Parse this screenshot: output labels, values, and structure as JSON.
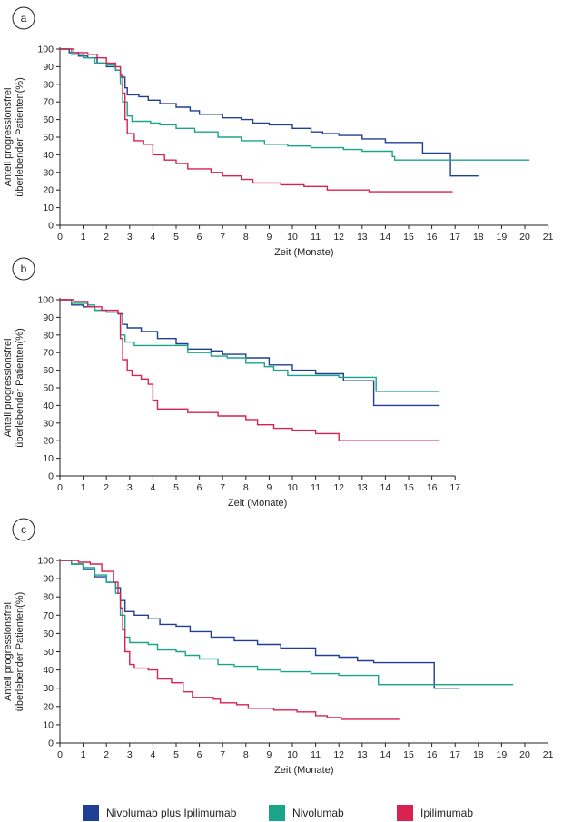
{
  "colors": {
    "nivolumab_plus_ipilimumab": "#1f3f94",
    "nivolumab": "#1aa58a",
    "ipilimumab": "#d8224f",
    "axis": "#231f20"
  },
  "legend": {
    "items": [
      {
        "label": "Nivolumab plus Ipilimumab",
        "color": "#1f3f94"
      },
      {
        "label": "Nivolumab",
        "color": "#1aa58a"
      },
      {
        "label": "Ipilimumab",
        "color": "#d8224f"
      }
    ]
  },
  "chart_data": [
    {
      "panel": "a",
      "type": "line",
      "step": true,
      "xlabel": "Zeit (Monate)",
      "ylabel_lines": [
        "Anteil progressionsfrei",
        "überlebender Patienten(%)"
      ],
      "xlim": [
        0,
        21
      ],
      "ylim": [
        0,
        100
      ],
      "xticks": [
        0,
        1,
        2,
        3,
        4,
        5,
        6,
        7,
        8,
        9,
        10,
        11,
        12,
        13,
        14,
        15,
        16,
        17,
        18,
        19,
        20,
        21
      ],
      "yticks": [
        0,
        10,
        20,
        30,
        40,
        50,
        60,
        70,
        80,
        90,
        100
      ],
      "series": [
        {
          "name": "Nivolumab plus Ipilimumab",
          "color": "#1f3f94",
          "points": [
            [
              0,
              100
            ],
            [
              0.4,
              98
            ],
            [
              0.8,
              96
            ],
            [
              1.2,
              95
            ],
            [
              1.6,
              92
            ],
            [
              2,
              90
            ],
            [
              2.4,
              88
            ],
            [
              2.6,
              84
            ],
            [
              2.8,
              78
            ],
            [
              2.9,
              74
            ],
            [
              3.4,
              73
            ],
            [
              3.8,
              71
            ],
            [
              4.3,
              69
            ],
            [
              5,
              67
            ],
            [
              5.6,
              65
            ],
            [
              6,
              63
            ],
            [
              7,
              61
            ],
            [
              7.8,
              60
            ],
            [
              8.3,
              58
            ],
            [
              9,
              57
            ],
            [
              10,
              55
            ],
            [
              10.8,
              53
            ],
            [
              11.3,
              52
            ],
            [
              12,
              51
            ],
            [
              13,
              49
            ],
            [
              14,
              47
            ],
            [
              15.6,
              46
            ],
            [
              15.6,
              41
            ],
            [
              16.8,
              41
            ],
            [
              16.8,
              28
            ],
            [
              18,
              28
            ]
          ]
        },
        {
          "name": "Nivolumab",
          "color": "#1aa58a",
          "points": [
            [
              0,
              100
            ],
            [
              0.5,
              97
            ],
            [
              1,
              95
            ],
            [
              1.5,
              92
            ],
            [
              2,
              91
            ],
            [
              2.4,
              88
            ],
            [
              2.6,
              80
            ],
            [
              2.7,
              70
            ],
            [
              2.9,
              62
            ],
            [
              3.1,
              59
            ],
            [
              3.9,
              58
            ],
            [
              4.3,
              57
            ],
            [
              5,
              55
            ],
            [
              5.8,
              53
            ],
            [
              6.8,
              50
            ],
            [
              7.8,
              48
            ],
            [
              8.8,
              46
            ],
            [
              9.8,
              45
            ],
            [
              10.8,
              44
            ],
            [
              12.2,
              43
            ],
            [
              13,
              42
            ],
            [
              14.1,
              42
            ],
            [
              14.3,
              39
            ],
            [
              14.4,
              37
            ],
            [
              20.2,
              37
            ]
          ]
        },
        {
          "name": "Ipilimumab",
          "color": "#d8224f",
          "points": [
            [
              0,
              100
            ],
            [
              0.6,
              98
            ],
            [
              1.2,
              97
            ],
            [
              1.6,
              95
            ],
            [
              2,
              92
            ],
            [
              2.4,
              90
            ],
            [
              2.6,
              85
            ],
            [
              2.7,
              75
            ],
            [
              2.8,
              60
            ],
            [
              2.9,
              52
            ],
            [
              3.2,
              48
            ],
            [
              3.6,
              46
            ],
            [
              4,
              40
            ],
            [
              4.5,
              37
            ],
            [
              5,
              35
            ],
            [
              5.5,
              32
            ],
            [
              6.5,
              30
            ],
            [
              7,
              28
            ],
            [
              7.8,
              26
            ],
            [
              8.3,
              24
            ],
            [
              9.5,
              23
            ],
            [
              10.5,
              22
            ],
            [
              11.5,
              20
            ],
            [
              12.8,
              20
            ],
            [
              13.3,
              19
            ],
            [
              16.9,
              19
            ]
          ]
        }
      ]
    },
    {
      "panel": "b",
      "type": "line",
      "step": true,
      "xlabel": "Zeit (Monate)",
      "ylabel_lines": [
        "Anteil progressionsfrei",
        "überlebender Patienten(%)"
      ],
      "xlim": [
        0,
        17
      ],
      "ylim": [
        0,
        100
      ],
      "xticks": [
        0,
        1,
        2,
        3,
        4,
        5,
        6,
        7,
        8,
        9,
        10,
        11,
        12,
        13,
        14,
        15,
        16,
        17
      ],
      "yticks": [
        0,
        10,
        20,
        30,
        40,
        50,
        60,
        70,
        80,
        90,
        100
      ],
      "series": [
        {
          "name": "Nivolumab plus Ipilimumab",
          "color": "#1f3f94",
          "points": [
            [
              0,
              100
            ],
            [
              0.5,
              97
            ],
            [
              1,
              96
            ],
            [
              1.5,
              94
            ],
            [
              2,
              93
            ],
            [
              2.5,
              92
            ],
            [
              2.7,
              86
            ],
            [
              2.9,
              84
            ],
            [
              3.5,
              82
            ],
            [
              4.2,
              78
            ],
            [
              5,
              75
            ],
            [
              5.5,
              72
            ],
            [
              6.5,
              71
            ],
            [
              7,
              69
            ],
            [
              8,
              67
            ],
            [
              9,
              63
            ],
            [
              10,
              60
            ],
            [
              11,
              58
            ],
            [
              12.2,
              54
            ],
            [
              13.5,
              54
            ],
            [
              13.5,
              40
            ],
            [
              16.3,
              40
            ]
          ]
        },
        {
          "name": "Nivolumab",
          "color": "#1aa58a",
          "points": [
            [
              0,
              100
            ],
            [
              0.5,
              98
            ],
            [
              1.2,
              97
            ],
            [
              1.5,
              94
            ],
            [
              2,
              93
            ],
            [
              2.5,
              92
            ],
            [
              2.6,
              80
            ],
            [
              2.8,
              76
            ],
            [
              3.2,
              74
            ],
            [
              4.5,
              74
            ],
            [
              5.5,
              70
            ],
            [
              6.5,
              68
            ],
            [
              7.2,
              67
            ],
            [
              8,
              64
            ],
            [
              8.8,
              62
            ],
            [
              9.2,
              60
            ],
            [
              9.8,
              57
            ],
            [
              12,
              56
            ],
            [
              13.6,
              56
            ],
            [
              13.6,
              48
            ],
            [
              16.3,
              48
            ]
          ]
        },
        {
          "name": "Ipilimumab",
          "color": "#d8224f",
          "points": [
            [
              0,
              100
            ],
            [
              0.6,
              99
            ],
            [
              1.2,
              96
            ],
            [
              1.8,
              94
            ],
            [
              2.5,
              92
            ],
            [
              2.6,
              78
            ],
            [
              2.7,
              66
            ],
            [
              2.9,
              60
            ],
            [
              3.1,
              57
            ],
            [
              3.5,
              55
            ],
            [
              3.8,
              52
            ],
            [
              4,
              43
            ],
            [
              4.2,
              38
            ],
            [
              5.5,
              36
            ],
            [
              6.8,
              34
            ],
            [
              8,
              32
            ],
            [
              8.5,
              29
            ],
            [
              9.2,
              27
            ],
            [
              10,
              26
            ],
            [
              11,
              24
            ],
            [
              12,
              20
            ],
            [
              16.3,
              20
            ]
          ]
        }
      ]
    },
    {
      "panel": "c",
      "type": "line",
      "step": true,
      "xlabel": "Zeit (Monate)",
      "ylabel_lines": [
        "Anteil progressionsfrei",
        "überlebender Patienten(%)"
      ],
      "xlim": [
        0,
        21
      ],
      "ylim": [
        0,
        100
      ],
      "xticks": [
        0,
        1,
        2,
        3,
        4,
        5,
        6,
        7,
        8,
        9,
        10,
        11,
        12,
        13,
        14,
        15,
        16,
        17,
        18,
        19,
        20,
        21
      ],
      "yticks": [
        0,
        10,
        20,
        30,
        40,
        50,
        60,
        70,
        80,
        90,
        100
      ],
      "series": [
        {
          "name": "Nivolumab plus Ipilimumab",
          "color": "#1f3f94",
          "points": [
            [
              0,
              100
            ],
            [
              0.5,
              98
            ],
            [
              1,
              95
            ],
            [
              1.5,
              91
            ],
            [
              2,
              88
            ],
            [
              2.4,
              85
            ],
            [
              2.6,
              78
            ],
            [
              2.8,
              72
            ],
            [
              3.2,
              70
            ],
            [
              3.8,
              68
            ],
            [
              4.3,
              65
            ],
            [
              5,
              64
            ],
            [
              5.6,
              61
            ],
            [
              6.5,
              58
            ],
            [
              7.5,
              56
            ],
            [
              8.5,
              54
            ],
            [
              9.5,
              52
            ],
            [
              11,
              48
            ],
            [
              12,
              47
            ],
            [
              12.8,
              45
            ],
            [
              13.5,
              44
            ],
            [
              16.1,
              44
            ],
            [
              16.1,
              30
            ],
            [
              17.2,
              30
            ]
          ]
        },
        {
          "name": "Nivolumab",
          "color": "#1aa58a",
          "points": [
            [
              0,
              100
            ],
            [
              0.5,
              98
            ],
            [
              1,
              96
            ],
            [
              1.5,
              92
            ],
            [
              2,
              88
            ],
            [
              2.4,
              82
            ],
            [
              2.6,
              70
            ],
            [
              2.8,
              58
            ],
            [
              3,
              55
            ],
            [
              3.8,
              54
            ],
            [
              4.2,
              51
            ],
            [
              5,
              50
            ],
            [
              5.4,
              48
            ],
            [
              6,
              46
            ],
            [
              6.8,
              43
            ],
            [
              7.5,
              42
            ],
            [
              8.5,
              40
            ],
            [
              9.5,
              39
            ],
            [
              10.8,
              38
            ],
            [
              12,
              37
            ],
            [
              13.7,
              37
            ],
            [
              13.7,
              32
            ],
            [
              19.5,
              32
            ]
          ]
        },
        {
          "name": "Ipilimumab",
          "color": "#d8224f",
          "points": [
            [
              0,
              100
            ],
            [
              0.8,
              99
            ],
            [
              1.3,
              98
            ],
            [
              1.8,
              94
            ],
            [
              2.3,
              88
            ],
            [
              2.5,
              82
            ],
            [
              2.6,
              74
            ],
            [
              2.7,
              62
            ],
            [
              2.8,
              50
            ],
            [
              3,
              43
            ],
            [
              3.2,
              41
            ],
            [
              3.8,
              40
            ],
            [
              4.2,
              35
            ],
            [
              4.8,
              33
            ],
            [
              5.3,
              28
            ],
            [
              5.7,
              25
            ],
            [
              6.6,
              24
            ],
            [
              6.9,
              22
            ],
            [
              7.6,
              21
            ],
            [
              8.1,
              19
            ],
            [
              9.2,
              18
            ],
            [
              10.2,
              17
            ],
            [
              11,
              15
            ],
            [
              11.5,
              14
            ],
            [
              12.1,
              13
            ],
            [
              14.6,
              13
            ]
          ]
        }
      ]
    }
  ]
}
